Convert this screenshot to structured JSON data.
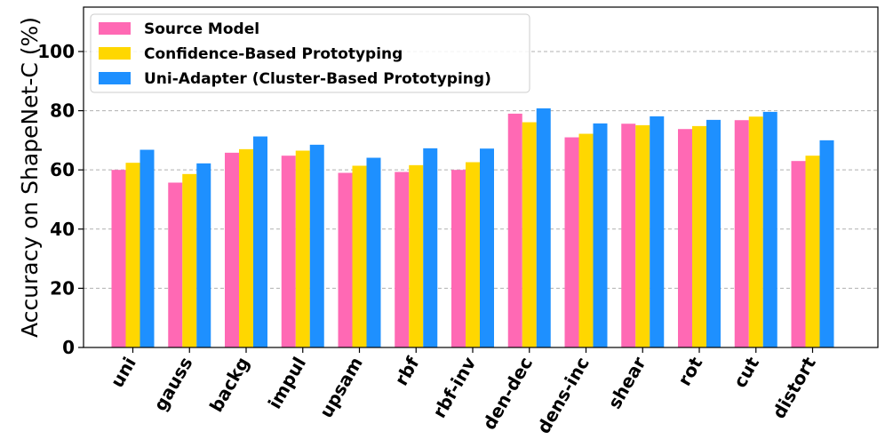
{
  "chart_data": {
    "type": "bar",
    "title": "",
    "xlabel": "",
    "ylabel": "Accuracy on ShapeNet-C (%)",
    "ylim": [
      0,
      115
    ],
    "yticks": [
      0,
      20,
      40,
      60,
      80,
      100
    ],
    "grid": "y-dashed",
    "legend_position": "top-left",
    "categories": [
      "uni",
      "gauss",
      "backg",
      "impul",
      "upsam",
      "rbf",
      "rbf-inv",
      "den-dec",
      "dens-inc",
      "shear",
      "rot",
      "cut",
      "distort"
    ],
    "series": [
      {
        "name": "Source Model",
        "color": "#ff69b4",
        "values": [
          60.0,
          55.7,
          65.8,
          64.8,
          59.0,
          59.3,
          60.0,
          79.0,
          71.0,
          75.6,
          73.8,
          76.8,
          63.0
        ]
      },
      {
        "name": "Confidence-Based Prototyping",
        "color": "#ffd700",
        "values": [
          62.4,
          58.6,
          67.0,
          66.5,
          61.4,
          61.6,
          62.6,
          76.1,
          72.2,
          75.1,
          74.8,
          78.0,
          64.8
        ]
      },
      {
        "name": "Uni-Adapter (Cluster-Based Prototyping)",
        "color": "#1e90ff",
        "values": [
          66.8,
          62.2,
          71.3,
          68.5,
          64.1,
          67.3,
          67.2,
          80.8,
          75.7,
          78.1,
          76.9,
          79.6,
          70.0
        ]
      }
    ]
  }
}
